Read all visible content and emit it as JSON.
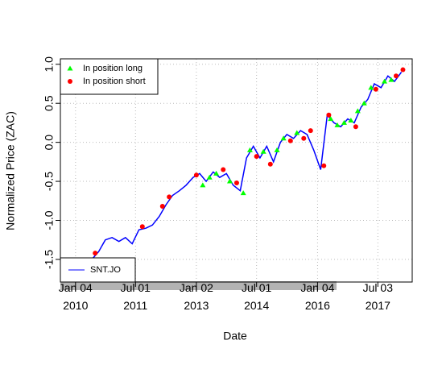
{
  "chart_data": {
    "type": "line",
    "xlabel": "Date",
    "ylabel": "Normalized Price (ZAC)",
    "x": [
      "2010-02-01",
      "2010-04-01",
      "2010-06-01",
      "2010-08-02",
      "2010-10-01",
      "2010-12-01",
      "2011-02-01",
      "2011-04-01",
      "2011-06-01",
      "2011-08-01",
      "2011-10-03",
      "2011-12-01",
      "2012-02-01",
      "2012-04-02",
      "2012-06-01",
      "2012-08-01",
      "2012-10-01",
      "2012-12-03",
      "2013-02-01",
      "2013-04-01",
      "2013-06-03",
      "2013-08-01",
      "2013-10-01",
      "2013-12-02",
      "2014-02-03",
      "2014-04-01",
      "2014-06-02",
      "2014-08-01",
      "2014-10-01",
      "2014-12-01",
      "2015-02-02",
      "2015-04-01",
      "2015-06-01",
      "2015-08-03",
      "2015-10-01",
      "2015-12-01",
      "2016-02-01",
      "2016-04-01",
      "2016-06-01",
      "2016-08-01",
      "2016-10-03",
      "2016-12-01",
      "2017-02-01",
      "2017-04-03",
      "2017-06-01",
      "2017-08-01",
      "2017-10-02",
      "2017-12-01",
      "2018-02-01"
    ],
    "series": [
      {
        "name": "SNT.JO",
        "color": "#0000ff",
        "values": [
          -1.7,
          -1.62,
          -1.5,
          -1.4,
          -1.25,
          -1.22,
          -1.27,
          -1.22,
          -1.3,
          -1.12,
          -1.1,
          -1.06,
          -0.95,
          -0.8,
          -0.68,
          -0.62,
          -0.55,
          -0.45,
          -0.4,
          -0.5,
          -0.38,
          -0.45,
          -0.4,
          -0.55,
          -0.62,
          -0.2,
          -0.05,
          -0.2,
          -0.05,
          -0.25,
          0.0,
          0.1,
          0.05,
          0.15,
          0.1,
          -0.1,
          -0.35,
          0.35,
          0.25,
          0.2,
          0.3,
          0.25,
          0.45,
          0.55,
          0.75,
          0.7,
          0.85,
          0.78,
          0.9
        ]
      }
    ],
    "points": [
      {
        "name": "In position long",
        "color": "#00ff00",
        "marker": "triangle",
        "x": [
          "2013-03-01",
          "2013-05-01",
          "2013-07-01",
          "2013-11-01",
          "2014-03-03",
          "2014-05-02",
          "2014-09-01",
          "2015-01-02",
          "2015-03-02",
          "2015-07-01",
          "2016-05-02",
          "2016-07-01",
          "2016-09-01",
          "2016-11-01",
          "2017-01-02",
          "2017-03-01",
          "2017-05-02",
          "2017-09-01",
          "2017-11-01"
        ],
        "values": [
          -0.55,
          -0.45,
          -0.4,
          -0.5,
          -0.65,
          -0.1,
          -0.12,
          -0.1,
          0.05,
          0.12,
          0.3,
          0.22,
          0.25,
          0.28,
          0.4,
          0.5,
          0.7,
          0.78,
          0.8
        ]
      },
      {
        "name": "In position short",
        "color": "#ff0000",
        "marker": "circle",
        "x": [
          "2010-07-01",
          "2011-09-01",
          "2012-03-01",
          "2012-05-01",
          "2013-01-02",
          "2013-09-02",
          "2014-01-02",
          "2014-07-01",
          "2014-11-03",
          "2015-05-04",
          "2015-09-01",
          "2015-11-02",
          "2016-03-01",
          "2016-04-15",
          "2016-12-15",
          "2017-06-15",
          "2017-12-15",
          "2018-02-15"
        ],
        "values": [
          -1.42,
          -1.08,
          -0.82,
          -0.7,
          -0.42,
          -0.35,
          -0.52,
          -0.18,
          -0.28,
          0.02,
          0.05,
          0.15,
          -0.3,
          0.35,
          0.2,
          0.68,
          0.85,
          0.93
        ]
      }
    ],
    "xlim": [
      "2009-08-20",
      "2018-05-10"
    ],
    "xticks": [
      {
        "value": "2010-01-04",
        "label": "Jan 04\n2010"
      },
      {
        "value": "2011-07-01",
        "label": "Jul 01\n2011"
      },
      {
        "value": "2013-01-02",
        "label": "Jan 02\n2013"
      },
      {
        "value": "2014-07-01",
        "label": "Jul 01\n2014"
      },
      {
        "value": "2016-01-04",
        "label": "Jan 04\n2016"
      },
      {
        "value": "2017-07-03",
        "label": "Jul 03\n2017"
      }
    ],
    "ylim": [
      -1.79,
      1.07
    ],
    "yticks": [
      -1.5,
      {
        "value": -1,
        "label": "-1.0"
      },
      -0.5,
      {
        "value": 0,
        "label": "0.0"
      },
      0.5,
      {
        "value": 1,
        "label": "1.0"
      }
    ],
    "grid": true,
    "points_legend": "topleft",
    "series_legend": "bottomleft"
  }
}
